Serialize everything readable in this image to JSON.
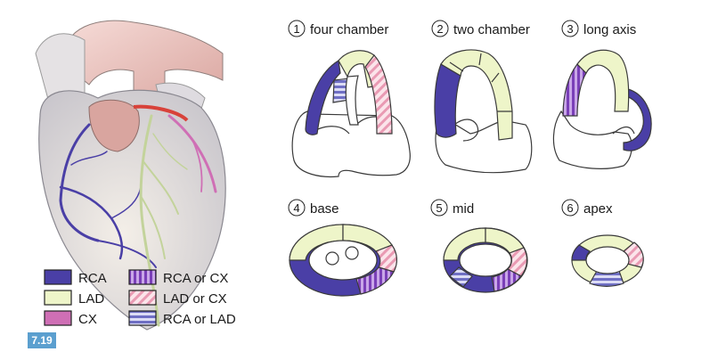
{
  "figure_number": "7.19",
  "views": [
    {
      "number": "1",
      "label": "four chamber"
    },
    {
      "number": "2",
      "label": "two chamber"
    },
    {
      "number": "3",
      "label": "long axis"
    },
    {
      "number": "4",
      "label": "base"
    },
    {
      "number": "5",
      "label": "mid"
    },
    {
      "number": "6",
      "label": "apex"
    }
  ],
  "legend": [
    {
      "label": "RCA",
      "fill": "solid",
      "color": "#4a3fa6"
    },
    {
      "label": "LAD",
      "fill": "solid",
      "color": "#eef5c9"
    },
    {
      "label": "CX",
      "fill": "solid",
      "color": "#cf6fb5"
    },
    {
      "label": "RCA or CX",
      "fill": "vertical-stripes",
      "color": "#9b4fc9"
    },
    {
      "label": "LAD or CX",
      "fill": "diagonal-stripes",
      "color": "#f2b8c8"
    },
    {
      "label": "RCA or LAD",
      "fill": "horizontal-stripes",
      "color": "#8f8fd8"
    }
  ],
  "colors": {
    "rca": "#4a3fa6",
    "lad": "#eef5c9",
    "cx": "#cf6fb5",
    "outline": "#3a3a3a",
    "badge": "#5b9fcf"
  }
}
